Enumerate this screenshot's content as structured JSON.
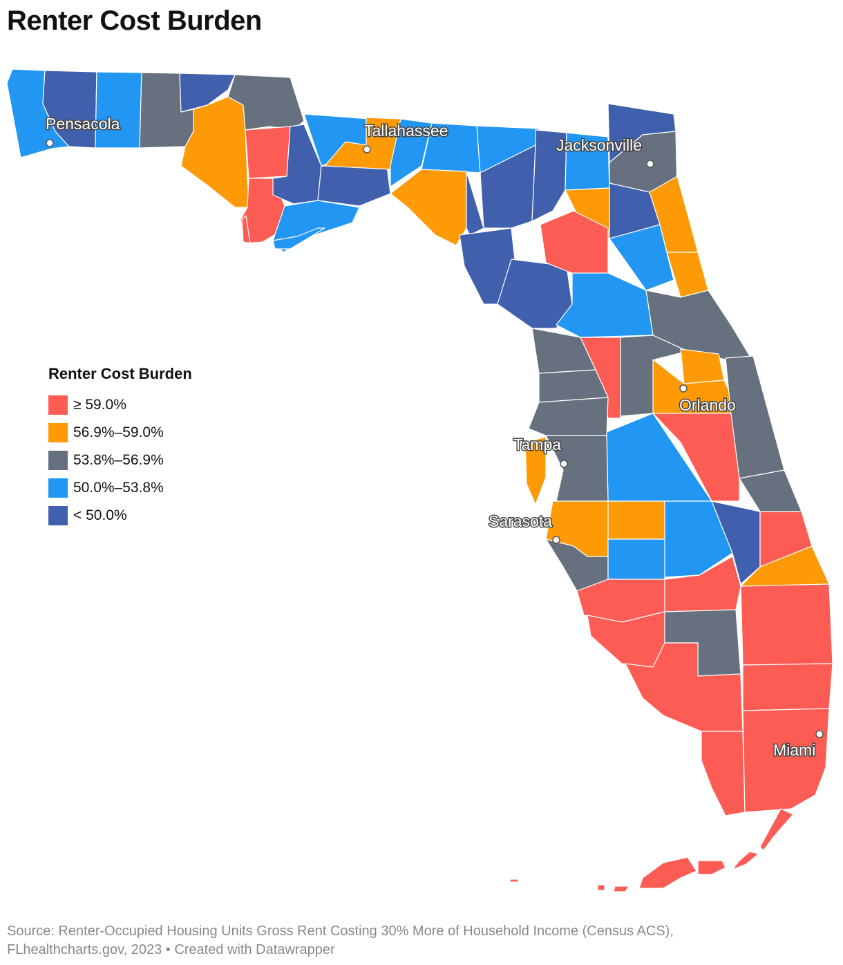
{
  "title": "Renter Cost Burden",
  "legend": {
    "title": "Renter Cost Burden",
    "items": [
      {
        "label": "≥ 59.0%",
        "color": "#fd5c55"
      },
      {
        "label": "56.9%–59.0%",
        "color": "#fd9a06"
      },
      {
        "label": "53.8%–56.9%",
        "color": "#66707f"
      },
      {
        "label": "50.0%–53.8%",
        "color": "#2196f3"
      },
      {
        "label": "< 50.0%",
        "color": "#4060ae"
      }
    ]
  },
  "cities": [
    "Pensacola",
    "Tallahassee",
    "Jacksonville",
    "Orlando",
    "Tampa",
    "Sarasota",
    "Miami"
  ],
  "footer": {
    "line1": "Source: Renter-Occupied Housing Units Gross Rent Costing 30% More of Household Income (Census ACS),",
    "line2": "FLhealthcharts.gov, 2023 • Created with Datawrapper"
  }
}
